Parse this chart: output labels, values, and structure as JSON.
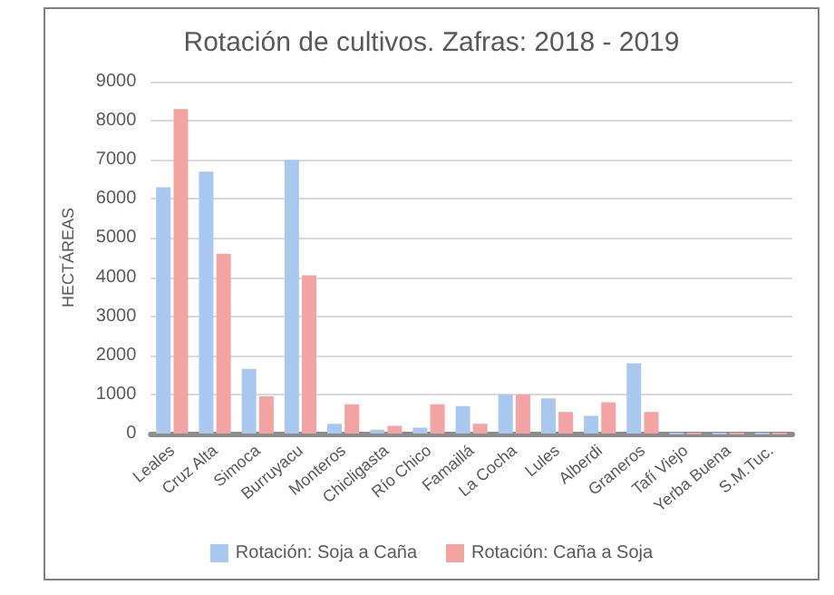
{
  "chart_data": {
    "type": "bar",
    "title": "Rotación de cultivos. Zafras: 2018 - 2019",
    "ylabel": "HECTÁREAS",
    "categories": [
      "Leales",
      "Cruz Alta",
      "Simoca",
      "Burruyacu",
      "Monteros",
      "Chicligasta",
      "Río Chico",
      "Famaillá",
      "La Cocha",
      "Lules",
      "Alberdi",
      "Graneros",
      "Tafí Viejo",
      "Yerba Buena",
      "S.M.Tuc."
    ],
    "series": [
      {
        "name": "Rotación: Soja a Caña",
        "color": "#a9c8f0",
        "values": [
          6300,
          6700,
          1650,
          7000,
          250,
          100,
          150,
          700,
          1000,
          900,
          450,
          1800,
          0,
          0,
          0
        ]
      },
      {
        "name": "Rotación: Caña a Soja",
        "color": "#f4a3a3",
        "values": [
          8300,
          4600,
          950,
          4050,
          750,
          200,
          750,
          250,
          1000,
          550,
          800,
          550,
          0,
          0,
          0
        ]
      }
    ],
    "ylim": [
      0,
      9000
    ],
    "yticks": [
      0,
      1000,
      2000,
      3000,
      4000,
      5000,
      6000,
      7000,
      8000,
      9000
    ],
    "grid": "y",
    "legend": "bottom"
  }
}
